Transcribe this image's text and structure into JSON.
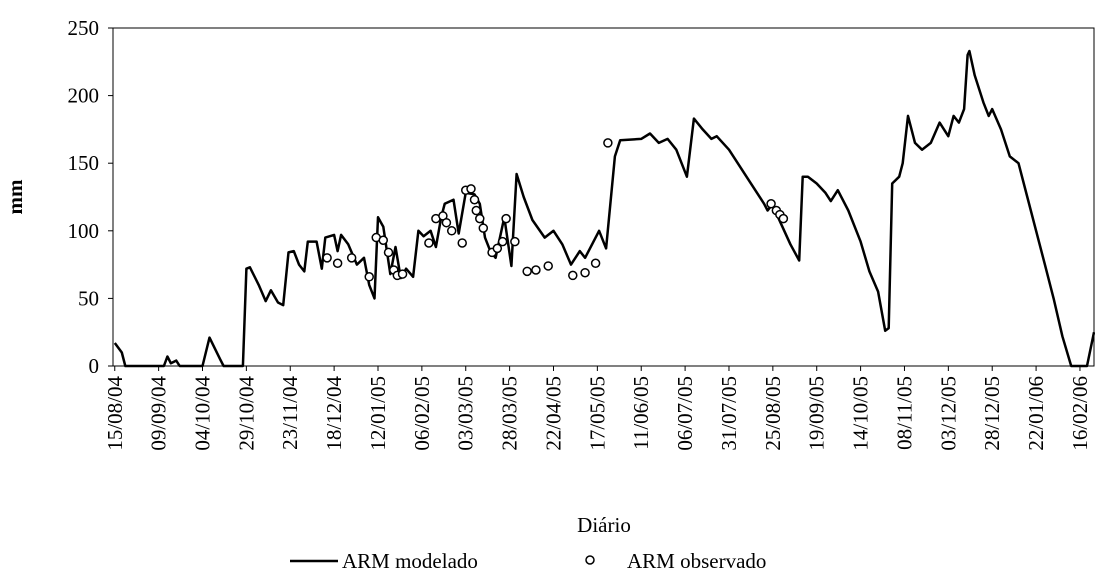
{
  "chart_data": {
    "type": "line",
    "x_label": "Diário",
    "y_label": "mm",
    "ylim": [
      0,
      250
    ],
    "yticks": [
      0,
      50,
      100,
      150,
      200,
      250
    ],
    "xlim": [
      "2004-08-14",
      "2006-02-24"
    ],
    "xticks": [
      {
        "value": "2004-08-15",
        "label": "15/08/04"
      },
      {
        "value": "2004-09-09",
        "label": "09/09/04"
      },
      {
        "value": "2004-10-04",
        "label": "04/10/04"
      },
      {
        "value": "2004-10-29",
        "label": "29/10/04"
      },
      {
        "value": "2004-11-23",
        "label": "23/11/04"
      },
      {
        "value": "2004-12-18",
        "label": "18/12/04"
      },
      {
        "value": "2005-01-12",
        "label": "12/01/05"
      },
      {
        "value": "2005-02-06",
        "label": "06/02/05"
      },
      {
        "value": "2005-03-03",
        "label": "03/03/05"
      },
      {
        "value": "2005-03-28",
        "label": "28/03/05"
      },
      {
        "value": "2005-04-22",
        "label": "22/04/05"
      },
      {
        "value": "2005-05-17",
        "label": "17/05/05"
      },
      {
        "value": "2005-06-11",
        "label": "11/06/05"
      },
      {
        "value": "2005-07-06",
        "label": "06/07/05"
      },
      {
        "value": "2005-07-31",
        "label": "31/07/05"
      },
      {
        "value": "2005-08-25",
        "label": "25/08/05"
      },
      {
        "value": "2005-09-19",
        "label": "19/09/05"
      },
      {
        "value": "2005-10-14",
        "label": "14/10/05"
      },
      {
        "value": "2005-11-08",
        "label": "08/11/05"
      },
      {
        "value": "2005-12-03",
        "label": "03/12/05"
      },
      {
        "value": "2005-12-28",
        "label": "28/12/05"
      },
      {
        "value": "2006-01-22",
        "label": "22/01/06"
      },
      {
        "value": "2006-02-16",
        "label": "16/02/06"
      }
    ],
    "legend": "bottom",
    "series": [
      {
        "name": "ARM modelado",
        "type": "line",
        "color": "#000000",
        "x": [
          "2004-08-15",
          "2004-08-19",
          "2004-08-21",
          "2004-09-12",
          "2004-09-14",
          "2004-09-16",
          "2004-09-19",
          "2004-09-21",
          "2004-10-04",
          "2004-10-08",
          "2004-10-14",
          "2004-10-16",
          "2004-10-27",
          "2004-10-29",
          "2004-10-31",
          "2004-11-05",
          "2004-11-09",
          "2004-11-12",
          "2004-11-16",
          "2004-11-19",
          "2004-11-22",
          "2004-11-25",
          "2004-11-28",
          "2004-12-01",
          "2004-12-03",
          "2004-12-08",
          "2004-12-11",
          "2004-12-13",
          "2004-12-18",
          "2004-12-20",
          "2004-12-22",
          "2004-12-26",
          "2004-12-31",
          "2005-01-04",
          "2005-01-07",
          "2005-01-10",
          "2005-01-12",
          "2005-01-15",
          "2005-01-19",
          "2005-01-22",
          "2005-01-25",
          "2005-01-28",
          "2005-02-01",
          "2005-02-04",
          "2005-02-07",
          "2005-02-11",
          "2005-02-14",
          "2005-02-17",
          "2005-02-19",
          "2005-02-24",
          "2005-02-27",
          "2005-03-03",
          "2005-03-08",
          "2005-03-11",
          "2005-03-14",
          "2005-03-17",
          "2005-03-20",
          "2005-03-25",
          "2005-03-29",
          "2005-04-01",
          "2005-04-05",
          "2005-04-10",
          "2005-04-17",
          "2005-04-22",
          "2005-04-27",
          "2005-05-02",
          "2005-05-07",
          "2005-05-10",
          "2005-05-14",
          "2005-05-18",
          "2005-05-22",
          "2005-05-27",
          "2005-05-30",
          "2005-06-11",
          "2005-06-16",
          "2005-06-21",
          "2005-06-26",
          "2005-07-01",
          "2005-07-07",
          "2005-07-11",
          "2005-07-16",
          "2005-07-21",
          "2005-07-24",
          "2005-07-31",
          "2005-08-10",
          "2005-08-20",
          "2005-08-22",
          "2005-08-25",
          "2005-08-28",
          "2005-09-04",
          "2005-09-09",
          "2005-09-11",
          "2005-09-14",
          "2005-09-19",
          "2005-09-24",
          "2005-09-27",
          "2005-10-01",
          "2005-10-07",
          "2005-10-14",
          "2005-10-19",
          "2005-10-24",
          "2005-10-28",
          "2005-10-30",
          "2005-11-01",
          "2005-11-05",
          "2005-11-07",
          "2005-11-10",
          "2005-11-14",
          "2005-11-18",
          "2005-11-23",
          "2005-11-28",
          "2005-12-03",
          "2005-12-06",
          "2005-12-09",
          "2005-12-12",
          "2005-12-14",
          "2005-12-15",
          "2005-12-18",
          "2005-12-23",
          "2005-12-26",
          "2005-12-28",
          "2006-01-02",
          "2006-01-07",
          "2006-01-12",
          "2006-01-17",
          "2006-01-22",
          "2006-01-27",
          "2006-02-01",
          "2006-02-06",
          "2006-02-11",
          "2006-02-20",
          "2006-02-24"
        ],
        "values": [
          17,
          10,
          0,
          0,
          7,
          2,
          4,
          0,
          0,
          21,
          5,
          0,
          0,
          72,
          73,
          60,
          48,
          56,
          47,
          45,
          84,
          85,
          75,
          70,
          92,
          92,
          72,
          95,
          97,
          85,
          97,
          90,
          75,
          80,
          60,
          50,
          110,
          103,
          68,
          88,
          65,
          72,
          66,
          100,
          96,
          100,
          88,
          110,
          120,
          123,
          98,
          128,
          127,
          120,
          95,
          85,
          80,
          110,
          74,
          142,
          125,
          108,
          95,
          100,
          90,
          75,
          85,
          80,
          90,
          100,
          87,
          155,
          167,
          168,
          172,
          165,
          168,
          160,
          140,
          183,
          175,
          168,
          170,
          160,
          140,
          120,
          115,
          120,
          110,
          90,
          78,
          140,
          140,
          135,
          128,
          122,
          130,
          115,
          92,
          70,
          55,
          26,
          28,
          135,
          140,
          150,
          185,
          165,
          160,
          165,
          180,
          170,
          185,
          180,
          190,
          230,
          233,
          215,
          195,
          185,
          190,
          175,
          155,
          150,
          125,
          100,
          75,
          50,
          22,
          0,
          0,
          25
        ]
      },
      {
        "name": "ARM observado",
        "type": "scatter",
        "color": "#000000",
        "x": [
          "2004-12-14",
          "2004-12-20",
          "2004-12-28",
          "2005-01-07",
          "2005-01-11",
          "2005-01-15",
          "2005-01-18",
          "2005-01-21",
          "2005-01-23",
          "2005-01-26",
          "2005-02-10",
          "2005-02-14",
          "2005-02-18",
          "2005-02-20",
          "2005-02-23",
          "2005-03-01",
          "2005-03-03",
          "2005-03-06",
          "2005-03-08",
          "2005-03-09",
          "2005-03-11",
          "2005-03-13",
          "2005-03-18",
          "2005-03-21",
          "2005-03-24",
          "2005-03-26",
          "2005-03-31",
          "2005-04-07",
          "2005-04-12",
          "2005-04-19",
          "2005-05-03",
          "2005-05-10",
          "2005-05-16",
          "2005-05-23",
          "2005-08-24",
          "2005-08-27",
          "2005-08-29",
          "2005-08-31"
        ],
        "values": [
          80,
          76,
          80,
          66,
          95,
          93,
          84,
          71,
          67,
          68,
          91,
          109,
          111,
          106,
          100,
          91,
          130,
          131,
          123,
          115,
          109,
          102,
          84,
          87,
          92,
          109,
          92,
          70,
          71,
          74,
          67,
          69,
          76,
          165,
          120,
          115,
          112,
          109
        ]
      }
    ]
  }
}
